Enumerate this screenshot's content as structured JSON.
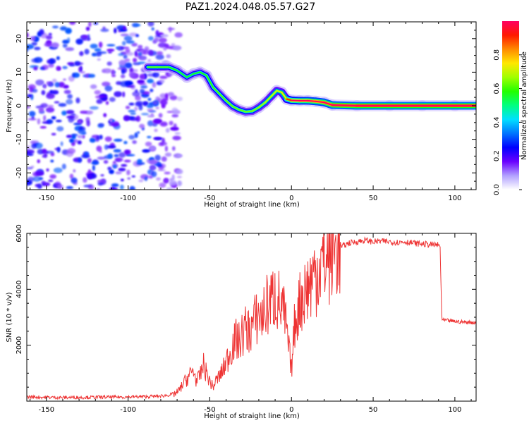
{
  "figure": {
    "title": "PAZ1.2024.048.05.57.G27"
  },
  "chart_data": [
    {
      "type": "heatmap",
      "title": "PAZ1.2024.048.05.57.G27",
      "xlabel": "Height of straight line (km)",
      "ylabel": "Frequency (Hz)",
      "xlim": [
        -162,
        113
      ],
      "ylim": [
        -25,
        25
      ],
      "x_ticks": [
        -150,
        -100,
        -50,
        0,
        50,
        100
      ],
      "y_ticks": [
        -20,
        -10,
        0,
        10,
        20
      ],
      "colorbar": {
        "label": "Normalized spectral amplitude",
        "range": [
          0,
          1
        ],
        "ticks": [
          0.0,
          0.2,
          0.4,
          0.6,
          0.8
        ],
        "colormap": [
          "#ffffff",
          "#b2a1ff",
          "#6a00ff",
          "#0000ff",
          "#0074ff",
          "#00e0ff",
          "#00ff80",
          "#22ff00",
          "#a0ff00",
          "#ffe800",
          "#ff8a00",
          "#ff1a00",
          "#ff0060"
        ]
      },
      "noise_region": {
        "x": [
          -162,
          -72
        ],
        "y": [
          -25,
          25
        ]
      },
      "ridge": {
        "x": [
          -88,
          -82,
          -75,
          -70,
          -64,
          -60,
          -56,
          -52,
          -48,
          -44,
          -40,
          -36,
          -32,
          -28,
          -24,
          -20,
          -16,
          -12,
          -9,
          -6,
          -3,
          0,
          5,
          10,
          15,
          20,
          25,
          40,
          60,
          80,
          100,
          113
        ],
        "frequency": [
          11.5,
          11.5,
          11.5,
          10.5,
          8.5,
          9.5,
          10.0,
          9.0,
          5.5,
          3.5,
          1.5,
          -0.2,
          -1.2,
          -1.8,
          -1.6,
          -0.5,
          1.0,
          3.0,
          4.5,
          4.0,
          2.0,
          1.6,
          1.5,
          1.5,
          1.3,
          1.0,
          0.2,
          0.0,
          0.0,
          0.0,
          0.0,
          0.0
        ],
        "amplitude": [
          0.35,
          0.35,
          0.34,
          0.3,
          0.28,
          0.3,
          0.3,
          0.32,
          0.34,
          0.36,
          0.36,
          0.38,
          0.36,
          0.38,
          0.38,
          0.4,
          0.42,
          0.45,
          0.45,
          0.45,
          0.55,
          0.75,
          0.8,
          0.82,
          0.85,
          0.85,
          0.9,
          0.95,
          0.95,
          0.95,
          0.95,
          0.95
        ]
      }
    },
    {
      "type": "line",
      "xlabel": "Height of straight line (km)",
      "ylabel": "SNR (10 * v/v)",
      "xlim": [
        -162,
        113
      ],
      "ylim": [
        0,
        6000
      ],
      "x_ticks": [
        -150,
        -100,
        -50,
        0,
        50,
        100
      ],
      "y_ticks": [
        2000,
        4000,
        6000
      ],
      "color": "#ee3333",
      "series": [
        {
          "x": [
            -162,
            -140,
            -120,
            -100,
            -90,
            -80,
            -75,
            -70,
            -68,
            -66,
            -64,
            -62,
            -60,
            -58,
            -56,
            -54,
            -52,
            -50,
            -48,
            -46,
            -44,
            -42,
            -40,
            -38,
            -36,
            -34,
            -32,
            -30,
            -28,
            -26,
            -24,
            -22,
            -20,
            -18,
            -16,
            -14,
            -12,
            -10,
            -8,
            -6,
            -4,
            -2,
            0,
            2,
            4,
            6,
            8,
            10,
            12,
            14,
            16,
            18,
            20,
            25,
            30,
            35,
            40,
            45,
            50,
            55,
            60,
            65,
            70,
            75,
            80,
            85,
            90,
            91,
            92,
            95,
            100,
            105,
            110,
            113
          ],
          "values": [
            150,
            130,
            140,
            150,
            160,
            180,
            220,
            300,
            450,
            650,
            800,
            950,
            1100,
            700,
            900,
            1300,
            1000,
            700,
            500,
            750,
            900,
            1100,
            1400,
            1700,
            2000,
            2200,
            2100,
            2400,
            2600,
            2500,
            2700,
            2900,
            3100,
            3000,
            3300,
            3500,
            3600,
            3800,
            3600,
            3300,
            3000,
            2000,
            1100,
            2800,
            3300,
            3700,
            3900,
            4100,
            4300,
            4500,
            4700,
            4900,
            5000,
            5300,
            5500,
            5650,
            5700,
            5750,
            5700,
            5720,
            5700,
            5680,
            5700,
            5650,
            5620,
            5600,
            5580,
            5500,
            2900,
            2880,
            2850,
            2830,
            2820,
            2800
          ]
        }
      ]
    }
  ]
}
